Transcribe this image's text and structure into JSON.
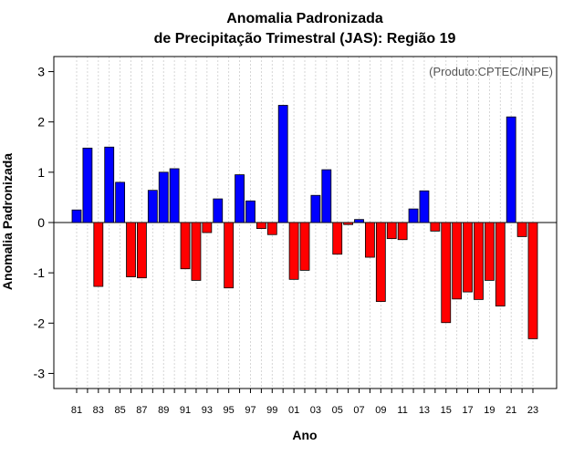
{
  "chart_data": {
    "type": "bar",
    "title": "Anomalia Padronizada",
    "subtitle": "de Precipitação Trimestral (JAS): Região 19",
    "credit": "(Produto:CPTEC/INPE)",
    "xlabel": "Ano",
    "ylabel": "Anomalia Padronizada",
    "ylim": [
      -3.3,
      3.3
    ],
    "yticks": [
      "-3",
      "-2",
      "-1",
      "0",
      "1",
      "2",
      "3"
    ],
    "xtick_labels": [
      "81",
      "83",
      "85",
      "87",
      "89",
      "91",
      "93",
      "95",
      "97",
      "99",
      "01",
      "03",
      "05",
      "07",
      "09",
      "11",
      "13",
      "15",
      "17",
      "19",
      "21",
      "23"
    ],
    "categories": [
      "1981",
      "1982",
      "1983",
      "1984",
      "1985",
      "1986",
      "1987",
      "1988",
      "1989",
      "1990",
      "1991",
      "1992",
      "1993",
      "1994",
      "1995",
      "1996",
      "1997",
      "1998",
      "1999",
      "2000",
      "2001",
      "2002",
      "2003",
      "2004",
      "2005",
      "2006",
      "2007",
      "2008",
      "2009",
      "2010",
      "2011",
      "2012",
      "2013",
      "2014",
      "2015",
      "2016",
      "2017",
      "2018",
      "2019",
      "2020",
      "2021",
      "2022",
      "2023"
    ],
    "values": [
      0.25,
      1.48,
      -1.27,
      1.5,
      0.8,
      -1.08,
      -1.1,
      0.64,
      1.0,
      1.07,
      -0.92,
      -1.15,
      -0.2,
      0.47,
      -1.3,
      0.95,
      0.43,
      -0.12,
      -0.24,
      2.33,
      -1.13,
      -0.95,
      0.54,
      1.05,
      -0.63,
      -0.04,
      0.06,
      -0.69,
      -1.57,
      -0.32,
      -0.34,
      0.27,
      0.63,
      -0.17,
      -1.99,
      -1.52,
      -1.38,
      -1.53,
      -1.15,
      -1.66,
      2.1,
      -0.28,
      -2.31
    ],
    "positive_color": "#0000ff",
    "negative_color": "#ff0000",
    "grid": true
  }
}
